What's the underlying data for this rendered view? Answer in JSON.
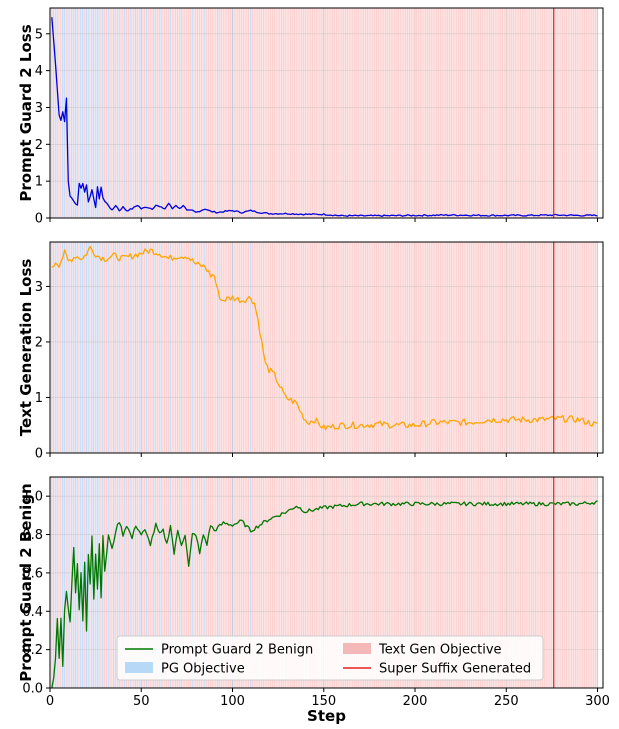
{
  "chart_data": [
    {
      "type": "line",
      "ylabel": "Prompt Guard 2 Loss",
      "xlabel": "",
      "xlim": [
        0,
        303
      ],
      "ylim": [
        0,
        5.7
      ],
      "xticks": [
        0,
        50,
        100,
        150,
        200,
        250,
        300
      ],
      "yticks": [
        0,
        1,
        2,
        3,
        4,
        5
      ],
      "grid": true,
      "series": [
        {
          "color": "#0000dd"
        }
      ],
      "shape_points": [
        [
          1,
          5.45
        ],
        [
          3,
          4.2
        ],
        [
          5,
          2.8
        ],
        [
          6,
          2.65
        ],
        [
          7,
          2.9
        ],
        [
          8,
          2.6
        ],
        [
          9,
          3.25
        ],
        [
          10,
          1.0
        ],
        [
          11,
          0.6
        ],
        [
          13,
          0.45
        ],
        [
          15,
          0.35
        ],
        [
          16,
          0.95
        ],
        [
          17,
          0.8
        ],
        [
          18,
          0.95
        ],
        [
          19,
          0.7
        ],
        [
          20,
          0.9
        ],
        [
          21,
          0.45
        ],
        [
          23,
          0.75
        ],
        [
          24,
          0.5
        ],
        [
          25,
          0.3
        ],
        [
          26,
          0.85
        ],
        [
          27,
          0.5
        ],
        [
          28,
          0.85
        ],
        [
          29,
          0.55
        ],
        [
          30,
          0.45
        ],
        [
          32,
          0.35
        ],
        [
          34,
          0.2
        ],
        [
          36,
          0.35
        ],
        [
          38,
          0.2
        ],
        [
          40,
          0.3
        ],
        [
          42,
          0.2
        ],
        [
          45,
          0.25
        ],
        [
          48,
          0.35
        ],
        [
          50,
          0.25
        ],
        [
          53,
          0.3
        ],
        [
          56,
          0.25
        ],
        [
          58,
          0.35
        ],
        [
          60,
          0.3
        ],
        [
          63,
          0.25
        ],
        [
          65,
          0.4
        ],
        [
          67,
          0.25
        ],
        [
          69,
          0.35
        ],
        [
          71,
          0.25
        ],
        [
          73,
          0.35
        ],
        [
          75,
          0.2
        ],
        [
          78,
          0.2
        ],
        [
          80,
          0.15
        ],
        [
          85,
          0.25
        ],
        [
          88,
          0.18
        ],
        [
          92,
          0.15
        ],
        [
          96,
          0.18
        ],
        [
          100,
          0.2
        ],
        [
          105,
          0.15
        ],
        [
          110,
          0.2
        ],
        [
          115,
          0.15
        ],
        [
          120,
          0.12
        ],
        [
          130,
          0.12
        ],
        [
          140,
          0.1
        ],
        [
          150,
          0.1
        ],
        [
          160,
          0.06
        ],
        [
          170,
          0.06
        ],
        [
          180,
          0.06
        ],
        [
          200,
          0.07
        ],
        [
          220,
          0.08
        ],
        [
          240,
          0.07
        ],
        [
          260,
          0.07
        ],
        [
          276,
          0.08
        ],
        [
          290,
          0.07
        ],
        [
          300,
          0.07
        ]
      ],
      "noise": 0.02
    },
    {
      "type": "line",
      "ylabel": "Text Generation Loss",
      "xlabel": "",
      "xlim": [
        0,
        303
      ],
      "ylim": [
        0,
        3.8
      ],
      "xticks": [
        0,
        50,
        100,
        150,
        200,
        250,
        300
      ],
      "yticks": [
        0,
        1,
        2,
        3
      ],
      "grid": true,
      "series": [
        {
          "color": "#ffa500"
        }
      ],
      "shape_points": [
        [
          1,
          3.3
        ],
        [
          3,
          3.45
        ],
        [
          5,
          3.4
        ],
        [
          8,
          3.6
        ],
        [
          10,
          3.45
        ],
        [
          14,
          3.55
        ],
        [
          18,
          3.5
        ],
        [
          22,
          3.7
        ],
        [
          26,
          3.55
        ],
        [
          30,
          3.5
        ],
        [
          35,
          3.55
        ],
        [
          40,
          3.5
        ],
        [
          45,
          3.55
        ],
        [
          50,
          3.6
        ],
        [
          55,
          3.65
        ],
        [
          60,
          3.6
        ],
        [
          65,
          3.5
        ],
        [
          70,
          3.55
        ],
        [
          75,
          3.55
        ],
        [
          80,
          3.4
        ],
        [
          85,
          3.35
        ],
        [
          88,
          3.2
        ],
        [
          90,
          3.2
        ],
        [
          92,
          2.9
        ],
        [
          94,
          2.75
        ],
        [
          100,
          2.8
        ],
        [
          105,
          2.75
        ],
        [
          110,
          2.8
        ],
        [
          112,
          2.7
        ],
        [
          114,
          2.4
        ],
        [
          116,
          2.0
        ],
        [
          118,
          1.6
        ],
        [
          120,
          1.5
        ],
        [
          123,
          1.4
        ],
        [
          126,
          1.2
        ],
        [
          129,
          1.0
        ],
        [
          132,
          0.95
        ],
        [
          135,
          0.9
        ],
        [
          138,
          0.7
        ],
        [
          141,
          0.55
        ],
        [
          145,
          0.6
        ],
        [
          150,
          0.45
        ],
        [
          160,
          0.5
        ],
        [
          170,
          0.5
        ],
        [
          180,
          0.52
        ],
        [
          190,
          0.5
        ],
        [
          200,
          0.5
        ],
        [
          210,
          0.55
        ],
        [
          220,
          0.55
        ],
        [
          230,
          0.55
        ],
        [
          240,
          0.6
        ],
        [
          250,
          0.6
        ],
        [
          260,
          0.6
        ],
        [
          270,
          0.6
        ],
        [
          280,
          0.62
        ],
        [
          290,
          0.6
        ],
        [
          300,
          0.5
        ]
      ],
      "noise": 0.06
    },
    {
      "type": "line",
      "ylabel": "Prompt Guard 2 Benign",
      "xlabel": "Step",
      "xlim": [
        0,
        303
      ],
      "ylim": [
        0,
        1.1
      ],
      "xticks": [
        0,
        50,
        100,
        150,
        200,
        250,
        300
      ],
      "yticks": [
        0.0,
        0.2,
        0.4,
        0.6,
        0.8,
        1.0
      ],
      "ytick_labels": [
        "0.0",
        "0.2",
        "0.4",
        "0.6",
        "0.8",
        "1.0"
      ],
      "grid": true,
      "series": [
        {
          "color": "#007700"
        }
      ],
      "shape_points": [
        [
          1,
          0.0
        ],
        [
          2,
          0.05
        ],
        [
          3,
          0.15
        ],
        [
          4,
          0.37
        ],
        [
          5,
          0.15
        ],
        [
          6,
          0.37
        ],
        [
          7,
          0.12
        ],
        [
          8,
          0.4
        ],
        [
          9,
          0.5
        ],
        [
          11,
          0.35
        ],
        [
          13,
          0.74
        ],
        [
          14,
          0.5
        ],
        [
          15,
          0.65
        ],
        [
          16,
          0.4
        ],
        [
          17,
          0.6
        ],
        [
          18,
          0.35
        ],
        [
          19,
          0.65
        ],
        [
          20,
          0.3
        ],
        [
          21,
          0.7
        ],
        [
          22,
          0.55
        ],
        [
          23,
          0.8
        ],
        [
          24,
          0.47
        ],
        [
          25,
          0.7
        ],
        [
          26,
          0.52
        ],
        [
          27,
          0.75
        ],
        [
          28,
          0.48
        ],
        [
          29,
          0.8
        ],
        [
          30,
          0.6
        ],
        [
          32,
          0.8
        ],
        [
          34,
          0.72
        ],
        [
          36,
          0.82
        ],
        [
          38,
          0.87
        ],
        [
          40,
          0.8
        ],
        [
          42,
          0.85
        ],
        [
          45,
          0.78
        ],
        [
          47,
          0.85
        ],
        [
          50,
          0.8
        ],
        [
          52,
          0.82
        ],
        [
          55,
          0.75
        ],
        [
          58,
          0.85
        ],
        [
          60,
          0.8
        ],
        [
          62,
          0.82
        ],
        [
          64,
          0.75
        ],
        [
          66,
          0.85
        ],
        [
          68,
          0.7
        ],
        [
          70,
          0.82
        ],
        [
          72,
          0.75
        ],
        [
          74,
          0.8
        ],
        [
          76,
          0.63
        ],
        [
          78,
          0.8
        ],
        [
          80,
          0.8
        ],
        [
          82,
          0.7
        ],
        [
          84,
          0.8
        ],
        [
          86,
          0.75
        ],
        [
          88,
          0.85
        ],
        [
          90,
          0.82
        ],
        [
          95,
          0.86
        ],
        [
          100,
          0.85
        ],
        [
          105,
          0.87
        ],
        [
          110,
          0.82
        ],
        [
          115,
          0.85
        ],
        [
          120,
          0.88
        ],
        [
          125,
          0.9
        ],
        [
          130,
          0.92
        ],
        [
          135,
          0.95
        ],
        [
          140,
          0.92
        ],
        [
          145,
          0.93
        ],
        [
          150,
          0.94
        ],
        [
          160,
          0.95
        ],
        [
          170,
          0.96
        ],
        [
          180,
          0.96
        ],
        [
          200,
          0.96
        ],
        [
          220,
          0.96
        ],
        [
          240,
          0.96
        ],
        [
          260,
          0.96
        ],
        [
          276,
          0.96
        ],
        [
          290,
          0.96
        ],
        [
          300,
          0.97
        ]
      ],
      "noise": 0.01
    }
  ],
  "shading": {
    "pg_color": "#c6ddfb",
    "text_color": "#fbd2d2",
    "pg_steps": [
      2,
      4,
      7,
      8,
      10,
      12,
      14,
      15,
      17,
      18,
      20,
      21,
      23,
      24,
      26,
      27,
      29,
      32,
      35,
      38,
      41,
      44,
      47,
      50,
      53,
      57,
      61,
      66,
      72,
      78,
      85,
      92,
      100,
      110
    ]
  },
  "marker": {
    "step": 276,
    "color": "#e82020"
  },
  "legend": {
    "placement": "bottom-center",
    "items": [
      {
        "label": "Prompt Guard 2 Benign",
        "kind": "line",
        "color": "#007700"
      },
      {
        "label": "Text Gen Objective",
        "kind": "patch",
        "color": "#f5b8b8"
      },
      {
        "label": "PG Objective",
        "kind": "patch",
        "color": "#b8d8f8"
      },
      {
        "label": "Super Suffix Generated",
        "kind": "line",
        "color": "#e82020"
      }
    ]
  }
}
